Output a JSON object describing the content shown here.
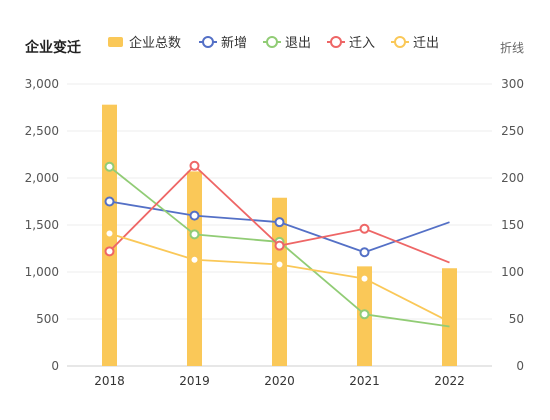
{
  "chart_data": {
    "type": "bar",
    "title": "企业变迁",
    "right_axis_label": "折线",
    "categories": [
      "2018",
      "2019",
      "2020",
      "2021",
      "2022"
    ],
    "left_axis": {
      "ylim": [
        0,
        3000
      ],
      "ticks": [
        "0",
        "500",
        "1,000",
        "1,500",
        "2,000",
        "2,500",
        "3,000"
      ]
    },
    "right_axis": {
      "ylim": [
        0,
        300
      ],
      "ticks": [
        "0",
        "50",
        "100",
        "150",
        "200",
        "250",
        "300"
      ]
    },
    "legend_position": "top",
    "grid": true,
    "series": [
      {
        "name": "企业总数",
        "type": "bar",
        "axis": "left",
        "color": "#fac858",
        "values": [
          2780,
          2070,
          1790,
          1060,
          1040
        ]
      },
      {
        "name": "新增",
        "type": "line",
        "axis": "right",
        "color": "#5470c6",
        "values": [
          175,
          160,
          153,
          121,
          153
        ]
      },
      {
        "name": "退出",
        "type": "line",
        "axis": "right",
        "color": "#91cc75",
        "values": [
          212,
          140,
          132,
          55,
          42
        ]
      },
      {
        "name": "迁入",
        "type": "line",
        "axis": "right",
        "color": "#ee6666",
        "values": [
          122,
          213,
          128,
          146,
          110
        ]
      },
      {
        "name": "迁出",
        "type": "line",
        "axis": "right",
        "color": "#fac858",
        "values": [
          141,
          113,
          108,
          93,
          47
        ]
      }
    ]
  }
}
